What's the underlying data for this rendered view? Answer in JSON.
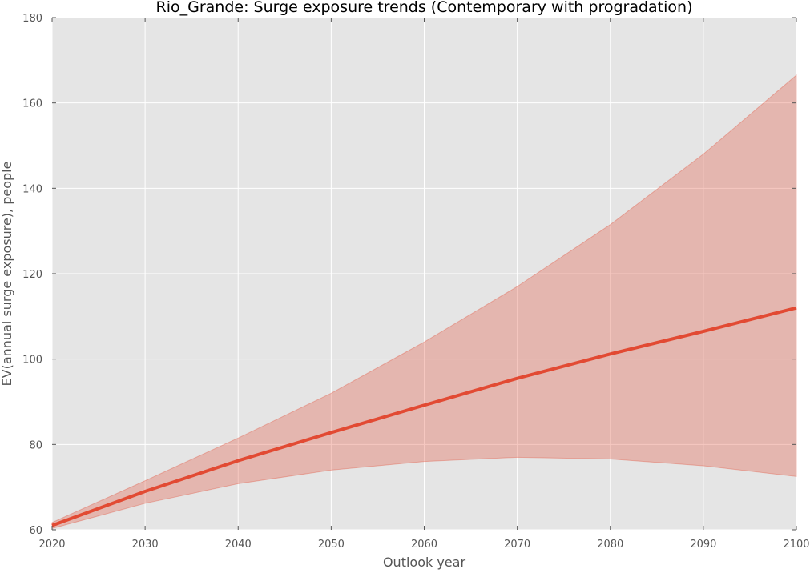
{
  "chart_data": {
    "type": "line",
    "title": "Rio_Grande: Surge exposure trends (Contemporary with progradation)",
    "xlabel": "Outlook year",
    "ylabel": "EV(annual surge exposure), people",
    "xlim": [
      2020,
      2100
    ],
    "ylim": [
      60,
      180
    ],
    "x_ticks": [
      2020,
      2030,
      2040,
      2050,
      2060,
      2070,
      2080,
      2090,
      2100
    ],
    "y_ticks": [
      60,
      80,
      100,
      120,
      140,
      160,
      180
    ],
    "grid": true,
    "legend": "none",
    "colors": {
      "line": "#e24a33",
      "band": "#e24a33",
      "plot_background": "#e5e5e5",
      "grid": "#ffffff",
      "text": "#555555"
    },
    "series": [
      {
        "x": [
          2020,
          2030,
          2040,
          2050,
          2060,
          2070,
          2080,
          2090,
          2100
        ],
        "values": [
          61,
          69,
          76.2,
          82.8,
          89.2,
          95.5,
          101.2,
          106.5,
          112
        ],
        "lower": [
          60.3,
          66.2,
          70.8,
          74,
          76,
          77,
          76.6,
          75,
          72.5
        ],
        "upper": [
          61.7,
          71.5,
          81.5,
          92,
          104,
          117,
          131.5,
          148,
          166.5
        ]
      }
    ]
  }
}
